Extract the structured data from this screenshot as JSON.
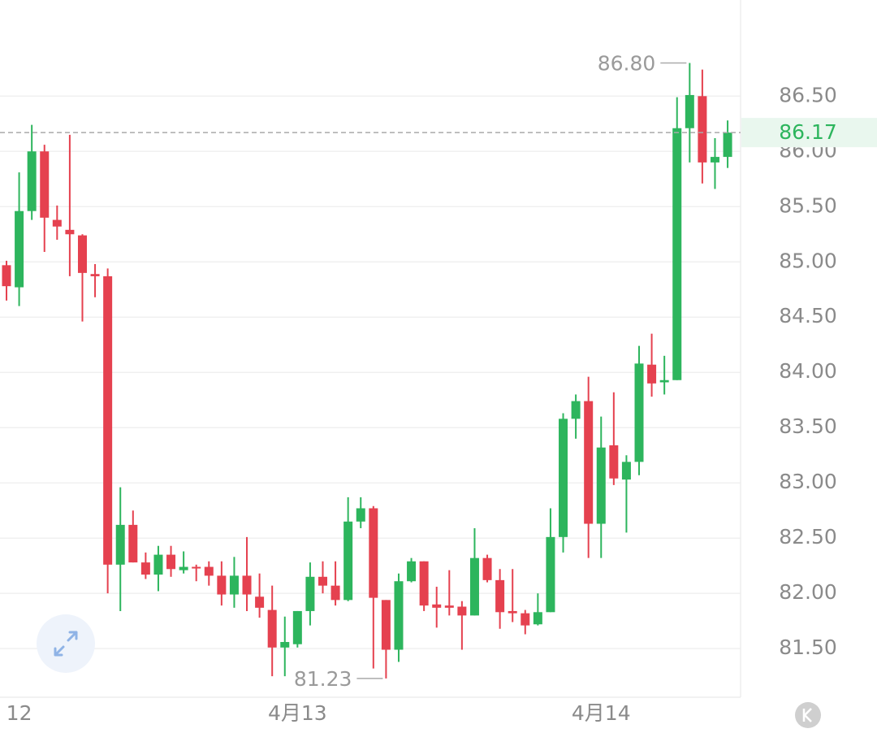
{
  "chart_data": {
    "type": "candlestick",
    "categories": [
      null,
      "12",
      null,
      null,
      null,
      null,
      null,
      null,
      null,
      null,
      null,
      null,
      null,
      null,
      null,
      null,
      null,
      null,
      null,
      null,
      null,
      null,
      null,
      "4月13",
      null,
      null,
      null,
      null,
      null,
      null,
      null,
      null,
      null,
      null,
      null,
      null,
      null,
      null,
      null,
      null,
      null,
      null,
      null,
      null,
      null,
      null,
      null,
      "4月14",
      null,
      null,
      null,
      null,
      null,
      null,
      null,
      null,
      null,
      null
    ],
    "series": [
      {
        "up_color": "#2db55d",
        "down_color": "#e5414f",
        "open": [
          84.97,
          84.77,
          85.46,
          86.0,
          85.38,
          85.29,
          85.24,
          84.89,
          84.87,
          82.26,
          82.62,
          82.28,
          82.17,
          82.35,
          82.21,
          82.24,
          82.24,
          82.16,
          81.99,
          82.16,
          81.97,
          81.85,
          81.51,
          81.54,
          81.84,
          82.15,
          82.07,
          81.94,
          82.65,
          82.77,
          81.94,
          81.49,
          82.11,
          82.29,
          81.9,
          81.89,
          81.88,
          81.8,
          82.32,
          82.12,
          81.84,
          81.82,
          81.72,
          81.83,
          82.51,
          83.58,
          83.74,
          82.63,
          83.34,
          83.03,
          83.19,
          84.07,
          83.91,
          83.93,
          86.21,
          86.5,
          85.9,
          85.95
        ],
        "high": [
          85.01,
          85.81,
          86.24,
          86.06,
          85.51,
          86.15,
          85.25,
          84.98,
          84.94,
          82.96,
          82.75,
          82.37,
          82.43,
          82.43,
          82.38,
          82.26,
          82.29,
          82.29,
          82.33,
          82.51,
          82.18,
          82.07,
          81.79,
          81.84,
          82.28,
          82.29,
          82.29,
          82.87,
          82.87,
          82.79,
          81.94,
          82.18,
          82.32,
          82.29,
          82.06,
          82.21,
          81.93,
          82.59,
          82.35,
          82.22,
          82.22,
          81.85,
          82.0,
          82.77,
          83.63,
          83.8,
          83.96,
          83.6,
          83.82,
          83.25,
          84.24,
          84.35,
          84.15,
          86.49,
          86.8,
          86.74,
          86.12,
          86.28
        ],
        "low": [
          84.65,
          84.6,
          85.38,
          85.09,
          85.2,
          84.87,
          84.46,
          84.68,
          82.0,
          81.84,
          82.28,
          82.13,
          82.02,
          82.15,
          82.18,
          82.11,
          82.07,
          81.89,
          81.87,
          81.84,
          81.78,
          81.25,
          81.25,
          81.51,
          81.71,
          82.0,
          81.89,
          81.93,
          82.59,
          81.32,
          81.23,
          81.38,
          82.1,
          81.84,
          81.69,
          81.8,
          81.49,
          81.8,
          82.1,
          81.68,
          81.74,
          81.63,
          81.71,
          81.83,
          82.37,
          83.4,
          82.32,
          82.32,
          82.98,
          82.55,
          83.07,
          83.78,
          83.8,
          83.93,
          85.9,
          85.71,
          85.66,
          85.85
        ],
        "close": [
          84.78,
          85.46,
          86.0,
          85.4,
          85.32,
          85.25,
          84.9,
          84.87,
          82.26,
          82.62,
          82.28,
          82.17,
          82.35,
          82.22,
          82.24,
          82.23,
          82.16,
          81.99,
          82.16,
          81.99,
          81.87,
          81.51,
          81.56,
          81.84,
          82.15,
          82.07,
          81.94,
          82.65,
          82.77,
          81.96,
          81.49,
          82.11,
          82.29,
          81.89,
          81.87,
          81.87,
          81.8,
          82.32,
          82.12,
          81.83,
          81.82,
          81.71,
          81.83,
          82.51,
          83.58,
          83.74,
          82.63,
          83.32,
          83.04,
          83.19,
          84.08,
          83.9,
          83.93,
          86.21,
          86.51,
          85.9,
          85.95,
          86.17
        ]
      }
    ],
    "ylim": [
      81.06,
      87.37
    ],
    "yticks": [
      {
        "value": 81.5,
        "label": "81.50"
      },
      {
        "value": 82,
        "label": "82.00"
      },
      {
        "value": 82.5,
        "label": "82.50"
      },
      {
        "value": 83,
        "label": "83.00"
      },
      {
        "value": 83.5,
        "label": "83.50"
      },
      {
        "value": 84,
        "label": "84.00"
      },
      {
        "value": 84.5,
        "label": "84.50"
      },
      {
        "value": 85,
        "label": "85.00"
      },
      {
        "value": 85.5,
        "label": "85.50"
      },
      {
        "value": 86,
        "label": "86.00"
      },
      {
        "value": 86.5,
        "label": "86.50"
      }
    ],
    "grid": true,
    "last_price": {
      "value": 86.17,
      "label": "86.17"
    },
    "max_marker": {
      "value": 86.8,
      "label": "86.80"
    },
    "min_marker": {
      "value": 81.23,
      "label": "81.23"
    }
  }
}
